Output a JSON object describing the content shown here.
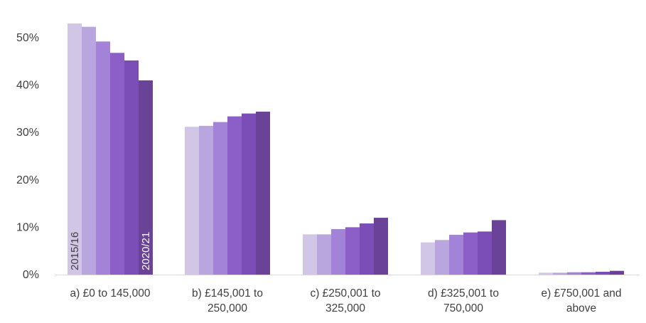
{
  "chart_data": {
    "type": "bar",
    "title": "",
    "xlabel": "",
    "ylabel": "",
    "ylim": [
      0,
      55
    ],
    "yticks": [
      0,
      10,
      20,
      30,
      40,
      50
    ],
    "ytick_labels": [
      "0%",
      "10%",
      "20%",
      "30%",
      "40%",
      "50%"
    ],
    "grid": false,
    "legend": "none",
    "categories": [
      [
        "a) £0 to 145,000"
      ],
      [
        "b) £145,001 to",
        "250,000"
      ],
      [
        "c) £250,001 to",
        "325,000"
      ],
      [
        "d) £325,001 to",
        "750,000"
      ],
      [
        "e) £750,001 and",
        "above"
      ]
    ],
    "series_colors": [
      "#d2c6e6",
      "#b9a6de",
      "#a383d8",
      "#8c5ec8",
      "#7b4db6",
      "#6a4398"
    ],
    "series": [
      {
        "values": [
          53.0,
          31.2,
          8.5,
          6.8,
          0.4
        ]
      },
      {
        "values": [
          52.3,
          31.4,
          8.5,
          7.3,
          0.4
        ]
      },
      {
        "values": [
          49.2,
          32.2,
          9.6,
          8.4,
          0.5
        ]
      },
      {
        "values": [
          46.8,
          33.4,
          10.0,
          8.9,
          0.5
        ]
      },
      {
        "values": [
          45.2,
          34.0,
          10.8,
          9.1,
          0.6
        ]
      },
      {
        "values": [
          41.0,
          34.4,
          12.0,
          11.5,
          0.8
        ]
      }
    ],
    "annotations": [
      {
        "text": "2015/16",
        "series": 0,
        "category": 0,
        "color": "#404040"
      },
      {
        "text": "2020/21",
        "series": 5,
        "category": 0,
        "color": "#ffffff"
      }
    ]
  }
}
